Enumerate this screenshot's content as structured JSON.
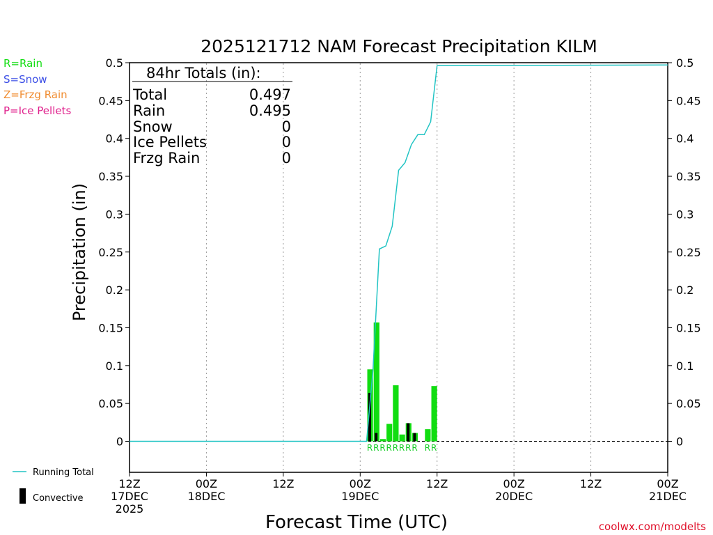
{
  "chart_data": {
    "type": "bar",
    "title": "2025121712 NAM Forecast Precipitation KILM",
    "xlabel": "Forecast Time (UTC)",
    "ylabel": "Precipitation (in)",
    "ylim": [
      -0.04,
      0.5
    ],
    "y_ticks": [
      0,
      0.05,
      0.1,
      0.15,
      0.2,
      0.25,
      0.3,
      0.35,
      0.4,
      0.45,
      0.5
    ],
    "y_tick_labels": [
      "0",
      "0.05",
      "0.1",
      "0.15",
      "0.2",
      "0.25",
      "0.3",
      "0.35",
      "0.4",
      "0.45",
      "0.5"
    ],
    "x_range_hours": [
      0,
      84
    ],
    "x_ticks": [
      {
        "hour": 0,
        "line1": "12Z",
        "line2": "17DEC",
        "line3": "2025"
      },
      {
        "hour": 12,
        "line1": "00Z",
        "line2": "18DEC",
        "line3": ""
      },
      {
        "hour": 24,
        "line1": "12Z",
        "line2": "",
        "line3": ""
      },
      {
        "hour": 36,
        "line1": "00Z",
        "line2": "19DEC",
        "line3": ""
      },
      {
        "hour": 48,
        "line1": "12Z",
        "line2": "",
        "line3": ""
      },
      {
        "hour": 60,
        "line1": "00Z",
        "line2": "20DEC",
        "line3": ""
      },
      {
        "hour": 72,
        "line1": "12Z",
        "line2": "",
        "line3": ""
      },
      {
        "hour": 84,
        "line1": "00Z",
        "line2": "21DEC",
        "line3": ""
      }
    ],
    "grid": "vertical dotted",
    "series": [
      {
        "name": "Rain",
        "color": "#11dd11",
        "x": [
          38,
          39,
          40,
          41,
          42,
          43,
          44,
          45,
          47,
          48
        ],
        "values": [
          0.095,
          0.157,
          0.003,
          0.023,
          0.074,
          0.009,
          0.024,
          0.011,
          0.016,
          0.073
        ]
      },
      {
        "name": "Convective",
        "color": "#000000",
        "x": [
          38,
          39,
          44,
          45
        ],
        "values": [
          0.064,
          0.011,
          0.024,
          0.011
        ]
      },
      {
        "name": "Running Total",
        "color": "#22c4c4",
        "x": [
          0,
          37,
          38,
          39,
          40,
          41,
          42,
          43,
          44,
          45,
          46,
          47,
          48,
          49,
          84
        ],
        "values": [
          0,
          0,
          0.095,
          0.254,
          0.258,
          0.284,
          0.358,
          0.368,
          0.392,
          0.405,
          0.405,
          0.422,
          0.496,
          0.496,
          0.497
        ]
      }
    ],
    "ptype_labels": [
      {
        "hour": 38,
        "label": "R"
      },
      {
        "hour": 39,
        "label": "R"
      },
      {
        "hour": 40,
        "label": "R"
      },
      {
        "hour": 41,
        "label": "R"
      },
      {
        "hour": 42,
        "label": "R"
      },
      {
        "hour": 43,
        "label": "R"
      },
      {
        "hour": 44,
        "label": "R"
      },
      {
        "hour": 45,
        "label": "R"
      },
      {
        "hour": 47,
        "label": "R"
      },
      {
        "hour": 48,
        "label": "R"
      }
    ]
  },
  "ptype_legend": [
    {
      "text": "R=Rain",
      "color": "#11dd11"
    },
    {
      "text": "S=Snow",
      "color": "#3b4ee6"
    },
    {
      "text": "Z=Frzg Rain",
      "color": "#f08c30"
    },
    {
      "text": "P=Ice Pellets",
      "color": "#e0208c"
    }
  ],
  "totals": {
    "header": "84hr Totals (in):",
    "rows": [
      {
        "label": "Total",
        "value": "0.497"
      },
      {
        "label": "Rain",
        "value": "0.495"
      },
      {
        "label": "Snow",
        "value": "0"
      },
      {
        "label": "Ice Pellets",
        "value": "0"
      },
      {
        "label": "Frzg Rain",
        "value": "0"
      }
    ]
  },
  "bottom_legend": {
    "running_total": "Running Total",
    "convective": "Convective"
  },
  "credit": "coolwx.com/modelts"
}
